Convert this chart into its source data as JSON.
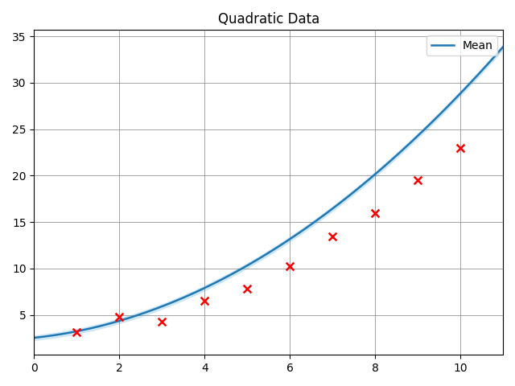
{
  "title": "Quadratic Data",
  "data_x": [
    1,
    2,
    3,
    4,
    5,
    6,
    7,
    8,
    9,
    10
  ],
  "data_y": [
    3.2,
    4.8,
    4.3,
    6.5,
    7.8,
    10.3,
    13.5,
    16.0,
    19.5,
    23.0
  ],
  "curve_a": 0.215,
  "curve_b": 0.48,
  "curve_c": 2.55,
  "curve_std": 0.25,
  "x_min": 0,
  "x_max": 11,
  "line_color": "#1f77b4",
  "fill_color": "#aed8f5",
  "fill_alpha": 0.5,
  "marker_color": "red",
  "marker_style": "x",
  "marker_size": 7,
  "marker_linewidth": 1.8,
  "legend_label": "Mean",
  "legend_loc": "upper right",
  "grid": true,
  "figsize": [
    6.4,
    4.8
  ],
  "dpi": 100
}
